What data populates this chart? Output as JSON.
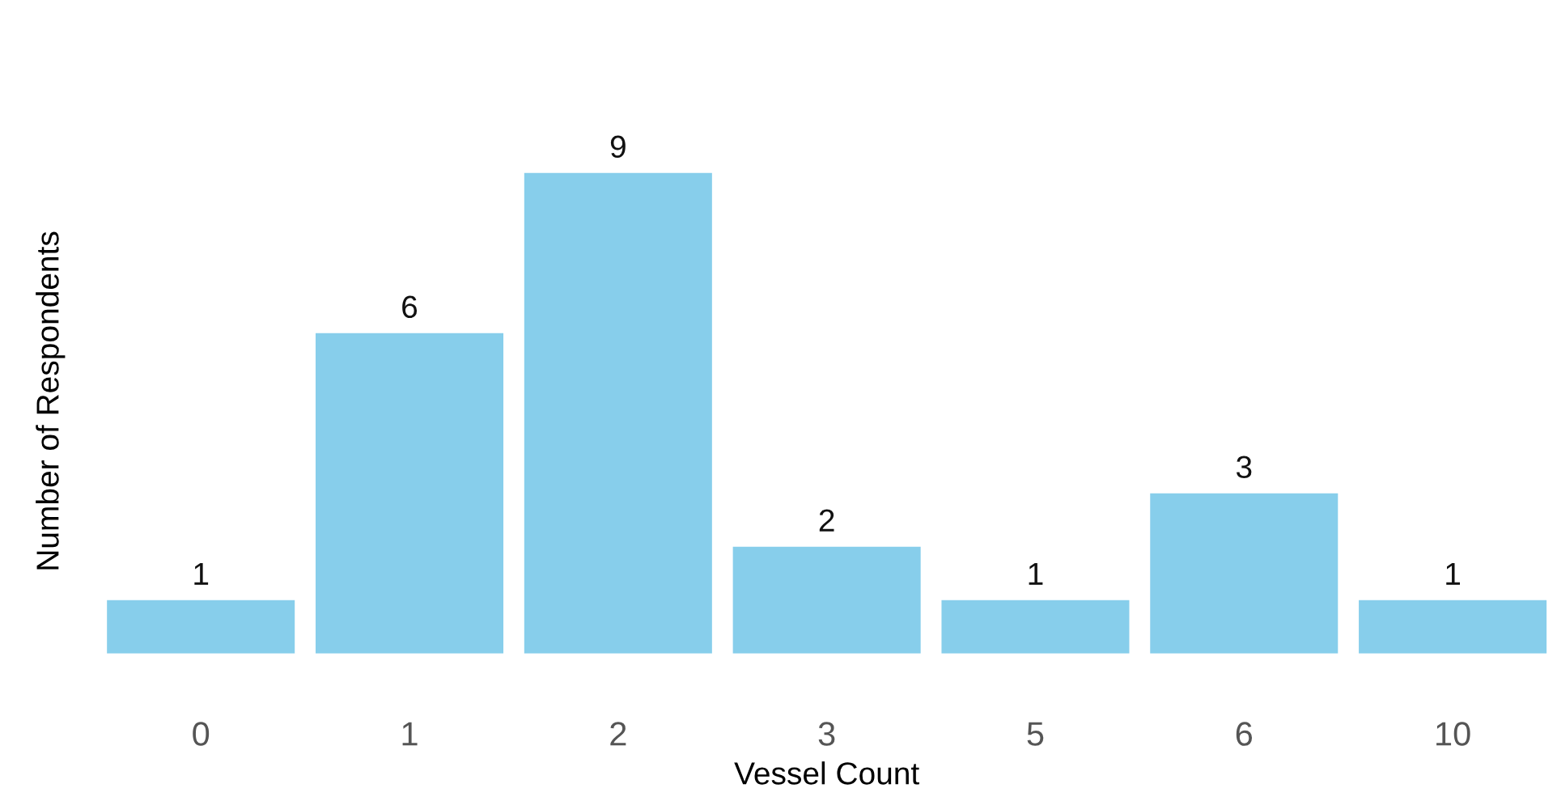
{
  "chart_data": {
    "type": "bar",
    "xlabel": "Vessel Count",
    "ylabel": "Number of Respondents",
    "categories": [
      "0",
      "1",
      "2",
      "3",
      "5",
      "6",
      "10"
    ],
    "values": [
      1,
      6,
      9,
      2,
      1,
      3,
      1
    ],
    "color": "#87ceeb",
    "tick_labels": "x",
    "data_labels": true,
    "grid": false,
    "legend": false
  }
}
